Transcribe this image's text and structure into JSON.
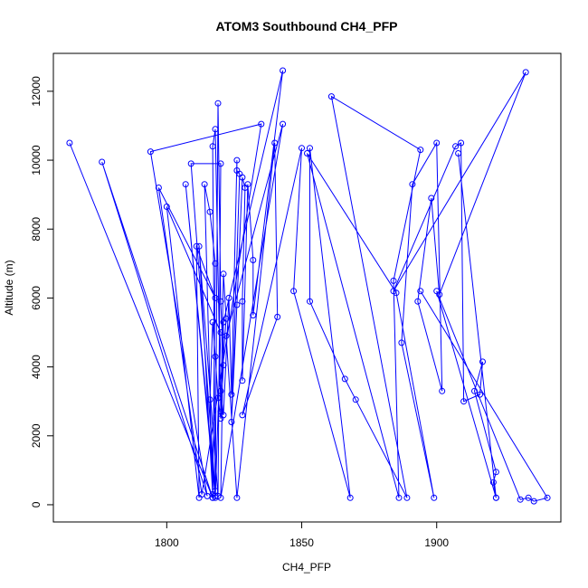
{
  "chart_data": {
    "type": "line",
    "title": "ATOM3 Southbound CH4_PFP",
    "xlabel": "CH4_PFP",
    "ylabel": "Altitude (m)",
    "xlim": [
      1758,
      1946
    ],
    "ylim": [
      -500,
      13100
    ],
    "xticks": [
      1800,
      1850,
      1900
    ],
    "yticks": [
      0,
      2000,
      4000,
      6000,
      8000,
      10000,
      12000
    ],
    "grid": false,
    "color": "#0000ff",
    "series": [
      {
        "values": [
          [
            1764,
            10500
          ],
          [
            1817,
            200
          ],
          [
            1776,
            9950
          ],
          [
            1815,
            250
          ],
          [
            1794,
            10250
          ],
          [
            1835,
            11050
          ],
          [
            1813,
            300
          ],
          [
            1797,
            9200
          ],
          [
            1818,
            6000
          ],
          [
            1811,
            7500
          ],
          [
            1812,
            200
          ],
          [
            1800,
            8650
          ],
          [
            1820,
            5000
          ],
          [
            1818,
            200
          ],
          [
            1807,
            9300
          ],
          [
            1818,
            400
          ],
          [
            1809,
            9900
          ],
          [
            1820,
            9900
          ],
          [
            1819,
            250
          ],
          [
            1812,
            7500
          ],
          [
            1817,
            300
          ],
          [
            1814,
            9300
          ],
          [
            1816,
            8500
          ],
          [
            1818,
            7000
          ],
          [
            1817,
            200
          ],
          [
            1816,
            3050
          ],
          [
            1817,
            5300
          ],
          [
            1818,
            4300
          ],
          [
            1819,
            3100
          ],
          [
            1820,
            2500
          ],
          [
            1821,
            4050
          ],
          [
            1820,
            5900
          ],
          [
            1819,
            11650
          ],
          [
            1818,
            250
          ],
          [
            1817,
            10400
          ],
          [
            1818,
            10900
          ],
          [
            1820,
            2700
          ],
          [
            1821,
            6700
          ],
          [
            1822,
            5400
          ],
          [
            1820,
            3300
          ],
          [
            1821,
            2600
          ],
          [
            1823,
            6000
          ],
          [
            1824,
            3200
          ],
          [
            1826,
            10000
          ],
          [
            1826,
            9700
          ],
          [
            1827,
            9600
          ],
          [
            1824,
            2400
          ],
          [
            1826,
            5800
          ],
          [
            1828,
            9500
          ],
          [
            1829,
            9200
          ],
          [
            1828,
            5900
          ],
          [
            1828,
            3600
          ],
          [
            1830,
            9300
          ],
          [
            1832,
            7100
          ],
          [
            1832,
            5500
          ],
          [
            1843,
            12600
          ],
          [
            1821,
            5300
          ],
          [
            1820,
            200
          ],
          [
            1843,
            11050
          ],
          [
            1822,
            4900
          ],
          [
            1826,
            200
          ],
          [
            1840,
            10500
          ],
          [
            1841,
            5450
          ],
          [
            1828,
            2600
          ],
          [
            1850,
            10350
          ],
          [
            1847,
            6200
          ],
          [
            1868,
            200
          ],
          [
            1853,
            10350
          ],
          [
            1853,
            5900
          ],
          [
            1866,
            3650
          ],
          [
            1870,
            3050
          ],
          [
            1889,
            200
          ],
          [
            1861,
            11850
          ],
          [
            1894,
            10300
          ],
          [
            1884,
            6500
          ],
          [
            1886,
            200
          ],
          [
            1852,
            10200
          ],
          [
            1885,
            6150
          ],
          [
            1899,
            200
          ],
          [
            1887,
            4700
          ],
          [
            1891,
            9300
          ],
          [
            1900,
            10500
          ],
          [
            1902,
            3300
          ],
          [
            1893,
            5900
          ],
          [
            1898,
            8900
          ],
          [
            1901,
            6100
          ],
          [
            1933,
            12550
          ],
          [
            1884,
            6200
          ],
          [
            1907,
            10400
          ],
          [
            1909,
            10500
          ],
          [
            1910,
            3000
          ],
          [
            1916,
            3200
          ],
          [
            1917,
            4150
          ],
          [
            1914,
            3300
          ],
          [
            1922,
            950
          ],
          [
            1921,
            650
          ],
          [
            1922,
            200
          ],
          [
            1908,
            10200
          ],
          [
            1922,
            200
          ],
          [
            1900,
            6200
          ],
          [
            1931,
            150
          ],
          [
            1934,
            200
          ],
          [
            1936,
            100
          ],
          [
            1941,
            200
          ],
          [
            1894,
            6200
          ]
        ]
      }
    ]
  }
}
